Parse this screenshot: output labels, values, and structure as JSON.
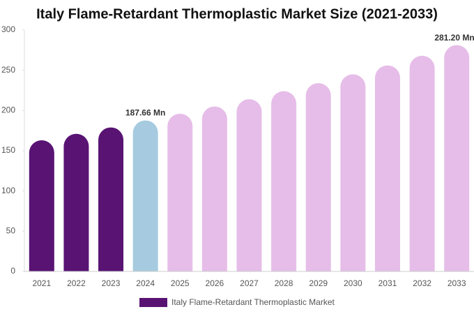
{
  "chart_data": {
    "type": "bar",
    "title": "Italy Flame-Retardant Thermoplastic Market Size (2021-2033)",
    "categories": [
      "2021",
      "2022",
      "2023",
      "2024",
      "2025",
      "2026",
      "2027",
      "2028",
      "2029",
      "2030",
      "2031",
      "2032",
      "2033"
    ],
    "series": [
      {
        "name": "Italy Flame-Retardant Thermoplastic Market",
        "color": "#581373",
        "values": [
          163,
          171,
          179,
          187.66,
          196,
          205,
          214,
          224,
          234,
          245,
          256,
          268,
          281.2
        ],
        "colors": [
          "#581373",
          "#581373",
          "#581373",
          "#a6cbe0",
          "#e6bde8",
          "#e6bde8",
          "#e6bde8",
          "#e6bde8",
          "#e6bde8",
          "#e6bde8",
          "#e6bde8",
          "#e6bde8",
          "#e6bde8"
        ],
        "value_labels": [
          null,
          null,
          null,
          "187.66 Mn",
          null,
          null,
          null,
          null,
          null,
          null,
          null,
          null,
          "281.20 Mn"
        ]
      }
    ],
    "ylim": [
      0,
      300
    ],
    "yticks": [
      0,
      50,
      100,
      150,
      200,
      250,
      300
    ],
    "grid": false
  }
}
